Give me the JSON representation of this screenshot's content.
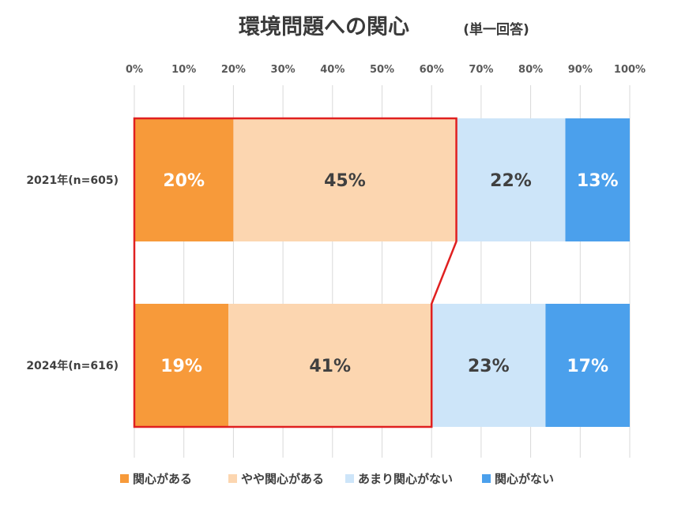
{
  "chart_data": {
    "type": "bar",
    "orientation": "horizontal",
    "stacked": true,
    "title": "環境問題への関心",
    "subtitle": "(単一回答)",
    "categories": [
      "2021年(n=605)",
      "2024年(n=616)"
    ],
    "series": [
      {
        "name": "関心がある",
        "values": [
          20,
          19
        ],
        "labels": [
          "20%",
          "19%"
        ],
        "color": "#F79A3A",
        "label_color": "#ffffff"
      },
      {
        "name": "やや関心がある",
        "values": [
          45,
          41
        ],
        "labels": [
          "45%",
          "41%"
        ],
        "color": "#FCD6B0",
        "label_color": "#404040"
      },
      {
        "name": "あまり関心がない",
        "values": [
          22,
          23
        ],
        "labels": [
          "22%",
          "23%"
        ],
        "color": "#CDE5F9",
        "label_color": "#404040"
      },
      {
        "name": "関心がない",
        "values": [
          13,
          17
        ],
        "labels": [
          "13%",
          "17%"
        ],
        "color": "#4BA0EC",
        "label_color": "#ffffff"
      }
    ],
    "xlim": [
      0,
      100
    ],
    "x_ticks": [
      "0%",
      "10%",
      "20%",
      "30%",
      "40%",
      "50%",
      "60%",
      "70%",
      "80%",
      "90%",
      "100%"
    ],
    "grid": true,
    "legend_position": "bottom",
    "highlight_color": "#E02020"
  }
}
